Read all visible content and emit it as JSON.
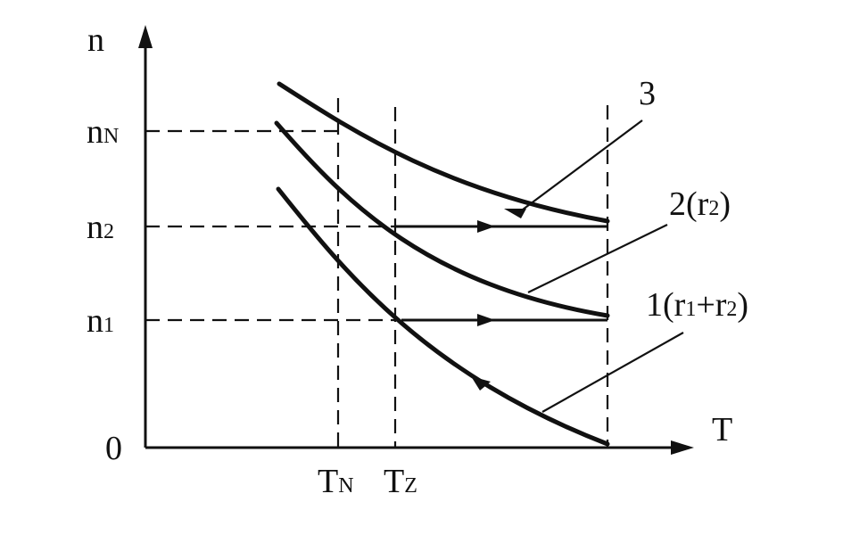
{
  "axes": {
    "y_label": "n",
    "x_label": "T",
    "origin": "0"
  },
  "y_ticks": [
    {
      "main": "n",
      "sub": "N"
    },
    {
      "main": "n",
      "sub": "2"
    },
    {
      "main": "n",
      "sub": "1"
    }
  ],
  "x_ticks": [
    {
      "main": "T",
      "sub": "N"
    },
    {
      "main": "T",
      "sub": "Z"
    }
  ],
  "curves": [
    {
      "label": "3"
    },
    {
      "label_prefix": "2(r",
      "label_sub": "2",
      "label_suffix": ")"
    },
    {
      "label_prefix": "1(r",
      "label_sub1": "1",
      "label_mid": "+r",
      "label_sub2": "2",
      "label_suffix": ")"
    }
  ]
}
